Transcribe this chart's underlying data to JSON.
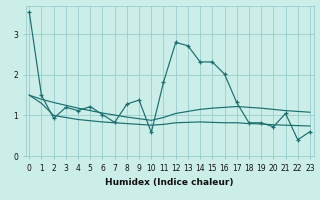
{
  "xlabel": "Humidex (Indice chaleur)",
  "background_color": "#cceee8",
  "grid_color": "#99cccc",
  "line_color": "#1a6e6e",
  "x_values": [
    0,
    1,
    2,
    3,
    4,
    5,
    6,
    7,
    8,
    9,
    10,
    11,
    12,
    13,
    14,
    15,
    16,
    17,
    18,
    19,
    20,
    21,
    22,
    23
  ],
  "series_main": [
    3.55,
    1.5,
    0.93,
    1.2,
    1.12,
    1.22,
    1.02,
    0.83,
    1.28,
    1.38,
    0.58,
    1.82,
    2.8,
    2.72,
    2.32,
    2.32,
    2.02,
    1.32,
    0.82,
    0.82,
    0.72,
    1.05,
    0.4,
    0.6
  ],
  "series_flat1": [
    1.5,
    1.4,
    1.32,
    1.25,
    1.18,
    1.12,
    1.06,
    1.01,
    0.96,
    0.92,
    0.88,
    0.95,
    1.05,
    1.1,
    1.15,
    1.18,
    1.2,
    1.22,
    1.2,
    1.18,
    1.15,
    1.12,
    1.1,
    1.08
  ],
  "series_flat2": [
    1.5,
    1.3,
    1.0,
    0.95,
    0.9,
    0.87,
    0.84,
    0.82,
    0.8,
    0.78,
    0.76,
    0.78,
    0.82,
    0.83,
    0.84,
    0.83,
    0.82,
    0.82,
    0.8,
    0.79,
    0.77,
    0.76,
    0.75,
    0.74
  ],
  "ylim": [
    0,
    3.7
  ],
  "yticks": [
    0,
    1,
    2,
    3
  ],
  "xticks": [
    0,
    1,
    2,
    3,
    4,
    5,
    6,
    7,
    8,
    9,
    10,
    11,
    12,
    13,
    14,
    15,
    16,
    17,
    18,
    19,
    20,
    21,
    22,
    23
  ]
}
